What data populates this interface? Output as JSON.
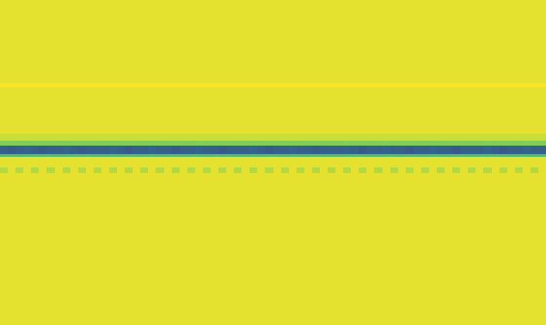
{
  "chart_data": {
    "type": "heatmap",
    "tick_labels": false,
    "xlim": [
      0,
      70
    ],
    "ylim": [
      0,
      100
    ],
    "zlim": [
      0,
      1
    ],
    "y_bins": [
      100,
      74.5,
      73.2,
      58.9,
      56.7,
      55.2,
      52.6,
      51.7,
      48.5,
      46.8,
      0
    ],
    "cells": [
      [
        0.96,
        0.96,
        0.96,
        0.96,
        0.96,
        0.96,
        0.96,
        0.96,
        0.96,
        0.96,
        0.96,
        0.96,
        0.96,
        0.96,
        0.96,
        0.96,
        0.96,
        0.96,
        0.96,
        0.96,
        0.96,
        0.96,
        0.96,
        0.96,
        0.96,
        0.96,
        0.96,
        0.96,
        0.96,
        0.96,
        0.96,
        0.96,
        0.96,
        0.96,
        0.96,
        0.96,
        0.96,
        0.96,
        0.96,
        0.96,
        0.96,
        0.96,
        0.96,
        0.96,
        0.96,
        0.96,
        0.96,
        0.96,
        0.96,
        0.96,
        0.96,
        0.96,
        0.96,
        0.96,
        0.96,
        0.96,
        0.96,
        0.96,
        0.96,
        0.96,
        0.96,
        0.96,
        0.96,
        0.96,
        0.96,
        0.96,
        0.96,
        0.96,
        0.96,
        0.96
      ],
      [
        0.99,
        0.99,
        0.99,
        0.99,
        0.99,
        0.99,
        0.99,
        0.99,
        0.99,
        0.99,
        0.99,
        0.99,
        0.99,
        0.99,
        0.99,
        0.99,
        0.99,
        0.99,
        0.99,
        0.99,
        0.99,
        0.99,
        0.99,
        0.99,
        0.99,
        0.99,
        0.99,
        0.99,
        0.99,
        0.99,
        0.99,
        0.99,
        0.99,
        0.99,
        0.99,
        0.99,
        0.99,
        0.99,
        0.99,
        0.99,
        0.99,
        0.99,
        0.99,
        0.99,
        0.99,
        0.99,
        0.99,
        0.99,
        0.99,
        0.99,
        0.99,
        0.99,
        0.99,
        0.99,
        0.99,
        0.99,
        0.99,
        0.99,
        0.99,
        0.99,
        0.99,
        0.99,
        0.99,
        0.99,
        0.99,
        0.99,
        0.99,
        0.99,
        0.99,
        0.99
      ],
      [
        0.96,
        0.96,
        0.96,
        0.96,
        0.96,
        0.96,
        0.96,
        0.96,
        0.96,
        0.96,
        0.96,
        0.96,
        0.96,
        0.96,
        0.96,
        0.96,
        0.96,
        0.96,
        0.96,
        0.96,
        0.96,
        0.96,
        0.96,
        0.96,
        0.96,
        0.96,
        0.96,
        0.96,
        0.96,
        0.96,
        0.96,
        0.96,
        0.96,
        0.96,
        0.96,
        0.96,
        0.96,
        0.96,
        0.96,
        0.96,
        0.96,
        0.96,
        0.96,
        0.96,
        0.96,
        0.96,
        0.96,
        0.96,
        0.96,
        0.96,
        0.96,
        0.96,
        0.96,
        0.96,
        0.96,
        0.96,
        0.96,
        0.96,
        0.96,
        0.96,
        0.96,
        0.96,
        0.96,
        0.96,
        0.96,
        0.96,
        0.96,
        0.96,
        0.96,
        0.96
      ],
      [
        0.92,
        0.92,
        0.92,
        0.92,
        0.92,
        0.92,
        0.92,
        0.92,
        0.92,
        0.92,
        0.92,
        0.92,
        0.92,
        0.92,
        0.92,
        0.92,
        0.92,
        0.92,
        0.92,
        0.92,
        0.92,
        0.92,
        0.92,
        0.92,
        0.92,
        0.92,
        0.92,
        0.92,
        0.92,
        0.92,
        0.92,
        0.92,
        0.92,
        0.92,
        0.92,
        0.92,
        0.92,
        0.92,
        0.92,
        0.92,
        0.92,
        0.92,
        0.92,
        0.92,
        0.92,
        0.92,
        0.92,
        0.92,
        0.92,
        0.92,
        0.92,
        0.92,
        0.92,
        0.92,
        0.92,
        0.92,
        0.92,
        0.92,
        0.92,
        0.92,
        0.92,
        0.92,
        0.92,
        0.92,
        0.92,
        0.92,
        0.92,
        0.92,
        0.92,
        0.92
      ],
      [
        0.8,
        0.8,
        0.8,
        0.8,
        0.8,
        0.8,
        0.8,
        0.8,
        0.8,
        0.8,
        0.8,
        0.8,
        0.8,
        0.8,
        0.8,
        0.8,
        0.8,
        0.8,
        0.8,
        0.8,
        0.8,
        0.8,
        0.8,
        0.8,
        0.8,
        0.8,
        0.8,
        0.8,
        0.8,
        0.8,
        0.8,
        0.8,
        0.8,
        0.8,
        0.8,
        0.8,
        0.8,
        0.8,
        0.8,
        0.8,
        0.8,
        0.8,
        0.8,
        0.8,
        0.8,
        0.8,
        0.8,
        0.8,
        0.8,
        0.8,
        0.8,
        0.8,
        0.8,
        0.8,
        0.8,
        0.8,
        0.8,
        0.8,
        0.8,
        0.8,
        0.8,
        0.8,
        0.8,
        0.8,
        0.8,
        0.8,
        0.8,
        0.8,
        0.8,
        0.8
      ],
      [
        0.3,
        0.28,
        0.3,
        0.32,
        0.3,
        0.28,
        0.3,
        0.3,
        0.32,
        0.3,
        0.28,
        0.3,
        0.3,
        0.3,
        0.32,
        0.3,
        0.28,
        0.3,
        0.3,
        0.32,
        0.3,
        0.3,
        0.28,
        0.3,
        0.3,
        0.32,
        0.3,
        0.3,
        0.28,
        0.3,
        0.3,
        0.3,
        0.32,
        0.3,
        0.28,
        0.3,
        0.3,
        0.32,
        0.3,
        0.3,
        0.28,
        0.3,
        0.3,
        0.3,
        0.32,
        0.3,
        0.28,
        0.3,
        0.3,
        0.32,
        0.3,
        0.3,
        0.28,
        0.3,
        0.3,
        0.32,
        0.3,
        0.3,
        0.28,
        0.3,
        0.3,
        0.3,
        0.32,
        0.3,
        0.28,
        0.3,
        0.3,
        0.32,
        0.3,
        0.3
      ],
      [
        0.7,
        0.7,
        0.7,
        0.7,
        0.7,
        0.7,
        0.7,
        0.7,
        0.7,
        0.7,
        0.7,
        0.7,
        0.7,
        0.7,
        0.7,
        0.7,
        0.7,
        0.7,
        0.7,
        0.7,
        0.7,
        0.7,
        0.7,
        0.7,
        0.7,
        0.7,
        0.7,
        0.7,
        0.7,
        0.7,
        0.7,
        0.7,
        0.7,
        0.7,
        0.7,
        0.7,
        0.7,
        0.7,
        0.7,
        0.7,
        0.7,
        0.7,
        0.7,
        0.7,
        0.7,
        0.7,
        0.7,
        0.7,
        0.7,
        0.7,
        0.7,
        0.7,
        0.7,
        0.7,
        0.7,
        0.7,
        0.7,
        0.7,
        0.7,
        0.7,
        0.7,
        0.7,
        0.7,
        0.7,
        0.7,
        0.7,
        0.7,
        0.7,
        0.7,
        0.7
      ],
      [
        0.96,
        0.96,
        0.96,
        0.96,
        0.96,
        0.96,
        0.96,
        0.96,
        0.96,
        0.96,
        0.96,
        0.96,
        0.96,
        0.96,
        0.96,
        0.96,
        0.96,
        0.96,
        0.96,
        0.96,
        0.96,
        0.96,
        0.96,
        0.96,
        0.96,
        0.96,
        0.96,
        0.96,
        0.96,
        0.96,
        0.96,
        0.96,
        0.96,
        0.96,
        0.96,
        0.96,
        0.96,
        0.96,
        0.96,
        0.96,
        0.96,
        0.96,
        0.96,
        0.96,
        0.96,
        0.96,
        0.96,
        0.96,
        0.96,
        0.96,
        0.96,
        0.96,
        0.96,
        0.96,
        0.96,
        0.96,
        0.96,
        0.96,
        0.96,
        0.96,
        0.96,
        0.96,
        0.96,
        0.96,
        0.96,
        0.96,
        0.96,
        0.96,
        0.96,
        0.96
      ],
      [
        0.88,
        0.96,
        0.88,
        0.96,
        0.88,
        0.96,
        0.88,
        0.96,
        0.88,
        0.96,
        0.88,
        0.96,
        0.88,
        0.96,
        0.88,
        0.96,
        0.88,
        0.96,
        0.88,
        0.96,
        0.88,
        0.96,
        0.88,
        0.96,
        0.88,
        0.96,
        0.88,
        0.96,
        0.88,
        0.96,
        0.88,
        0.96,
        0.88,
        0.96,
        0.88,
        0.96,
        0.88,
        0.96,
        0.88,
        0.96,
        0.88,
        0.96,
        0.88,
        0.96,
        0.88,
        0.96,
        0.88,
        0.96,
        0.88,
        0.96,
        0.88,
        0.96,
        0.88,
        0.96,
        0.88,
        0.96,
        0.88,
        0.96,
        0.88,
        0.96,
        0.88,
        0.96,
        0.88,
        0.96,
        0.88,
        0.96,
        0.88,
        0.96,
        0.88,
        0.96
      ],
      [
        0.96,
        0.96,
        0.96,
        0.96,
        0.96,
        0.96,
        0.96,
        0.96,
        0.96,
        0.96,
        0.96,
        0.96,
        0.96,
        0.96,
        0.96,
        0.96,
        0.96,
        0.96,
        0.96,
        0.96,
        0.96,
        0.96,
        0.96,
        0.96,
        0.96,
        0.96,
        0.96,
        0.96,
        0.96,
        0.96,
        0.96,
        0.96,
        0.96,
        0.96,
        0.96,
        0.96,
        0.96,
        0.96,
        0.96,
        0.96,
        0.96,
        0.96,
        0.96,
        0.96,
        0.96,
        0.96,
        0.96,
        0.96,
        0.96,
        0.96,
        0.96,
        0.96,
        0.96,
        0.96,
        0.96,
        0.96,
        0.96,
        0.96,
        0.96,
        0.96,
        0.96,
        0.96,
        0.96,
        0.96,
        0.96,
        0.96,
        0.96,
        0.96,
        0.96,
        0.96
      ]
    ]
  }
}
